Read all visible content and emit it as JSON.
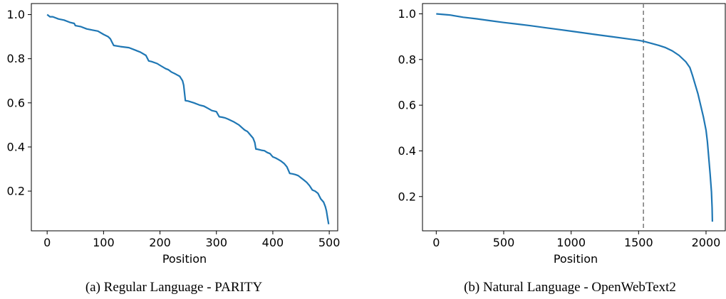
{
  "chart_data": [
    {
      "type": "line",
      "caption": "(a) Regular Language - PARITY",
      "xlabel": "Position",
      "ylabel": "",
      "xlim": [
        -28,
        515
      ],
      "ylim": [
        0.02,
        1.05
      ],
      "xticks": [
        0,
        100,
        200,
        300,
        400,
        500
      ],
      "yticks": [
        0.2,
        0.4,
        0.6,
        0.8,
        1.0
      ],
      "ytick_labels": [
        "0.2",
        "0.4",
        "0.6",
        "0.8",
        "1.0"
      ],
      "grid": false,
      "color": "#1f77b4",
      "series": [
        {
          "x": [
            0,
            5,
            10,
            20,
            30,
            40,
            48,
            50,
            60,
            70,
            80,
            90,
            100,
            108,
            112,
            115,
            118,
            130,
            145,
            155,
            160,
            165,
            175,
            180,
            185,
            195,
            200,
            210,
            215,
            220,
            228,
            235,
            240,
            242,
            245,
            250,
            260,
            270,
            278,
            285,
            292,
            300,
            305,
            310,
            315,
            320,
            330,
            340,
            345,
            350,
            355,
            360,
            365,
            368,
            370,
            372,
            380,
            385,
            390,
            395,
            400,
            405,
            410,
            415,
            420,
            425,
            430,
            435,
            440,
            445,
            450,
            455,
            460,
            465,
            470,
            475,
            480,
            485,
            490,
            493,
            495,
            497,
            499
          ],
          "y": [
            1.0,
            0.99,
            0.99,
            0.98,
            0.975,
            0.965,
            0.96,
            0.95,
            0.945,
            0.935,
            0.93,
            0.925,
            0.91,
            0.9,
            0.89,
            0.875,
            0.86,
            0.855,
            0.85,
            0.84,
            0.835,
            0.83,
            0.815,
            0.79,
            0.787,
            0.778,
            0.77,
            0.755,
            0.75,
            0.74,
            0.73,
            0.72,
            0.7,
            0.68,
            0.61,
            0.608,
            0.6,
            0.59,
            0.585,
            0.575,
            0.565,
            0.56,
            0.537,
            0.535,
            0.532,
            0.527,
            0.515,
            0.5,
            0.488,
            0.477,
            0.47,
            0.455,
            0.44,
            0.42,
            0.39,
            0.39,
            0.385,
            0.383,
            0.375,
            0.37,
            0.355,
            0.35,
            0.343,
            0.335,
            0.325,
            0.31,
            0.28,
            0.278,
            0.275,
            0.27,
            0.26,
            0.25,
            0.24,
            0.225,
            0.205,
            0.2,
            0.19,
            0.165,
            0.15,
            0.13,
            0.11,
            0.08,
            0.05
          ]
        }
      ]
    },
    {
      "type": "line",
      "caption": "(b)  Natural Language - OpenWebText2",
      "xlabel": "Position",
      "ylabel": "",
      "xlim": [
        -102,
        2148
      ],
      "ylim": [
        0.05,
        1.045
      ],
      "xticks": [
        0,
        500,
        1000,
        1500,
        2000
      ],
      "yticks": [
        0.2,
        0.4,
        0.6,
        0.8,
        1.0
      ],
      "ytick_labels": [
        "0.2",
        "0.4",
        "0.6",
        "0.8",
        "1.0"
      ],
      "grid": false,
      "color": "#1f77b4",
      "reference_line_x": 1536,
      "series": [
        {
          "x": [
            0,
            100,
            200,
            300,
            400,
            500,
            600,
            700,
            800,
            900,
            1000,
            1100,
            1200,
            1300,
            1400,
            1500,
            1536,
            1600,
            1650,
            1700,
            1750,
            1800,
            1850,
            1880,
            1900,
            1920,
            1940,
            1960,
            1980,
            2000,
            2010,
            2020,
            2030,
            2040,
            2045,
            2047
          ],
          "y": [
            1.0,
            0.995,
            0.985,
            0.978,
            0.97,
            0.962,
            0.955,
            0.948,
            0.94,
            0.932,
            0.924,
            0.916,
            0.908,
            0.9,
            0.892,
            0.884,
            0.88,
            0.87,
            0.862,
            0.852,
            0.838,
            0.818,
            0.79,
            0.765,
            0.73,
            0.69,
            0.65,
            0.6,
            0.55,
            0.49,
            0.44,
            0.37,
            0.3,
            0.22,
            0.15,
            0.09
          ]
        }
      ]
    }
  ]
}
